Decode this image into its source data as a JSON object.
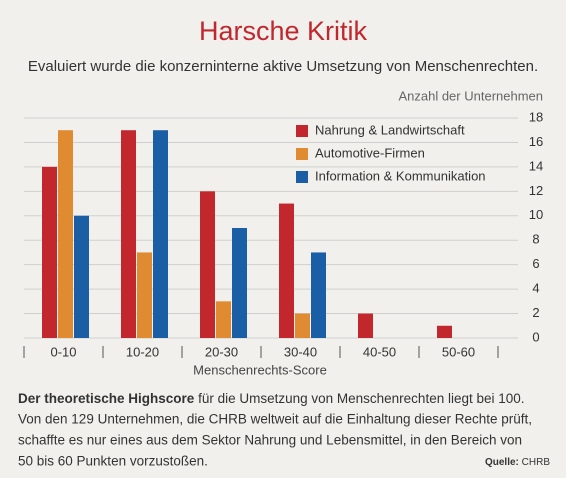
{
  "chart_data": {
    "type": "bar",
    "title": "Harsche Kritik",
    "subtitle": "Evaluiert wurde die konzerninterne aktive Umsetzung von Menschenrechten.",
    "y_label": "Anzahl der Unternehmen",
    "x_label": "Menschenrechts-Score",
    "categories": [
      "0-10",
      "10-20",
      "20-30",
      "30-40",
      "40-50",
      "50-60"
    ],
    "series": [
      {
        "name": "Nahrung & Landwirtschaft",
        "color": "#c1272d",
        "values": [
          14,
          17,
          12,
          11,
          2,
          1
        ]
      },
      {
        "name": "Automotive-Firmen",
        "color": "#e08a32",
        "values": [
          17,
          7,
          3,
          2,
          null,
          null
        ]
      },
      {
        "name": "Information & Kommunikation",
        "color": "#1a5ea5",
        "values": [
          10,
          17,
          9,
          7,
          null,
          null
        ]
      }
    ],
    "ylim": [
      0,
      18
    ],
    "yticks": [
      0,
      2,
      4,
      6,
      8,
      10,
      12,
      14,
      16,
      18
    ],
    "grid": true,
    "legend": "top-right",
    "footnote": {
      "bold": "Der theoretische Highscore",
      "lines": [
        "für die Umsetzung von Menschenrechten liegt bei 100.",
        "Von den 129 Unternehmen, die CHRB weltweit auf die Einhaltung dieser Rechte prüft,",
        "schaffte es nur eines aus dem Sektor Nahrung und Lebensmittel, in den Bereich von",
        "50 bis 60 Punkten vorzustoßen."
      ]
    },
    "source_label": "Quelle:",
    "source": "CHRB"
  }
}
